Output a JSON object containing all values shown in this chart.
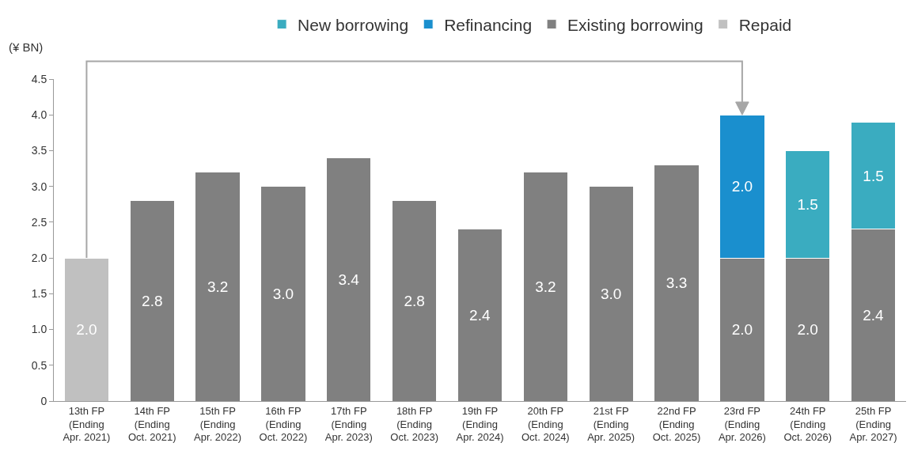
{
  "chart_data": {
    "type": "bar",
    "stacked": true,
    "ylabel": "(¥ BN)",
    "categories": [
      "13th FP\n(Ending\nApr. 2021)",
      "14th FP\n(Ending\nOct. 2021)",
      "15th FP\n(Ending\nApr. 2022)",
      "16th FP\n(Ending\nOct. 2022)",
      "17th FP\n(Ending\nApr. 2023)",
      "18th FP\n(Ending\nOct. 2023)",
      "19th FP\n(Ending\nApr. 2024)",
      "20th FP\n(Ending\nOct. 2024)",
      "21st FP\n(Ending\nApr. 2025)",
      "22nd FP\n(Ending\nOct. 2025)",
      "23rd FP\n(Ending\nApr. 2026)",
      "24th FP\n(Ending\nOct. 2026)",
      "25th FP\n(Ending\nApr. 2027)"
    ],
    "series": [
      {
        "name": "Repaid",
        "color": "#c0c0c0",
        "values": [
          2.0,
          null,
          null,
          null,
          null,
          null,
          null,
          null,
          null,
          null,
          null,
          null,
          null
        ],
        "value_labels": [
          "2.0",
          null,
          null,
          null,
          null,
          null,
          null,
          null,
          null,
          null,
          null,
          null,
          null
        ]
      },
      {
        "name": "Existing borrowing",
        "color": "#808080",
        "values": [
          null,
          2.8,
          3.2,
          3.0,
          3.4,
          2.8,
          2.4,
          3.2,
          3.0,
          3.3,
          2.0,
          2.0,
          2.4
        ],
        "value_labels": [
          null,
          "2.8",
          "3.2",
          "3.0",
          "3.4",
          "2.8",
          "2.4",
          "3.2",
          "3.0",
          "3.3",
          "2.0",
          "2.0",
          "2.4"
        ]
      },
      {
        "name": "Refinancing",
        "color": "#1a8fce",
        "values": [
          null,
          null,
          null,
          null,
          null,
          null,
          null,
          null,
          null,
          null,
          2.0,
          null,
          null
        ],
        "value_labels": [
          null,
          null,
          null,
          null,
          null,
          null,
          null,
          null,
          null,
          null,
          "2.0",
          null,
          null
        ]
      },
      {
        "name": "New borrowing",
        "color": "#3aacc0",
        "values": [
          null,
          null,
          null,
          null,
          null,
          null,
          null,
          null,
          null,
          null,
          null,
          1.5,
          1.5
        ],
        "value_labels": [
          null,
          null,
          null,
          null,
          null,
          null,
          null,
          null,
          null,
          null,
          null,
          "1.5",
          "1.5"
        ]
      }
    ],
    "ylim": [
      0,
      4.5
    ],
    "yticks": [
      0,
      {
        "value": 0.5,
        "label": "0.5"
      },
      {
        "value": 1,
        "label": "1.0"
      },
      {
        "value": 1.5,
        "label": "1.5"
      },
      {
        "value": 2,
        "label": "2.0"
      },
      {
        "value": 2.5,
        "label": "2.5"
      },
      {
        "value": 3,
        "label": "3.0"
      },
      {
        "value": 3.5,
        "label": "3.5"
      },
      {
        "value": 4,
        "label": "4.0"
      },
      {
        "value": 4.5,
        "label": "4.5"
      }
    ],
    "legend": "top"
  }
}
